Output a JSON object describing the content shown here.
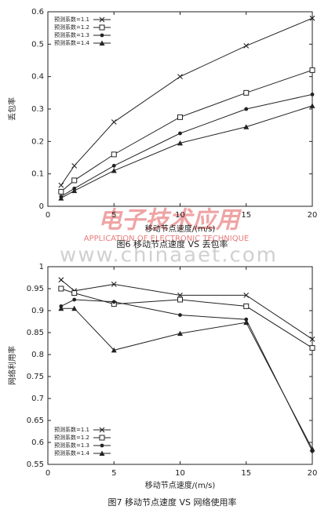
{
  "chart_data": [
    {
      "type": "line",
      "xlabel": "移动节点速度/(m/s)",
      "ylabel": "丢包率",
      "caption": "图6 移动节点速度 VS 丢包率",
      "x": [
        1,
        2,
        5,
        10,
        15,
        20
      ],
      "xlim": [
        0,
        20
      ],
      "xticks": [
        0,
        5,
        10,
        15,
        20
      ],
      "ylim": [
        0,
        0.6
      ],
      "yticks": [
        0,
        0.1,
        0.2,
        0.3,
        0.4,
        0.5,
        0.6
      ],
      "legend": "upper left",
      "series": [
        {
          "name": "预测系数=1.1",
          "color": "#222222",
          "marker": "x",
          "values": [
            0.065,
            0.125,
            0.26,
            0.4,
            0.495,
            0.58
          ]
        },
        {
          "name": "预测系数=1.2",
          "color": "#222222",
          "marker": "square",
          "values": [
            0.045,
            0.08,
            0.16,
            0.275,
            0.35,
            0.42
          ]
        },
        {
          "name": "预测系数=1.3",
          "color": "#222222",
          "marker": "circle",
          "values": [
            0.03,
            0.055,
            0.125,
            0.225,
            0.3,
            0.345
          ]
        },
        {
          "name": "预测系数=1.4",
          "color": "#222222",
          "marker": "triangle",
          "values": [
            0.025,
            0.048,
            0.11,
            0.195,
            0.245,
            0.31
          ]
        }
      ]
    },
    {
      "type": "line",
      "xlabel": "移动节点速度/(m/s)",
      "ylabel": "网络利用率",
      "caption": "图7 移动节点速度 VS 网络使用率",
      "x": [
        1,
        2,
        5,
        10,
        15,
        20
      ],
      "xlim": [
        0,
        20
      ],
      "xticks": [
        0,
        5,
        10,
        15,
        20
      ],
      "ylim": [
        0.55,
        1
      ],
      "yticks": [
        0.55,
        0.6,
        0.65,
        0.7,
        0.75,
        0.8,
        0.85,
        0.9,
        0.95,
        1
      ],
      "legend": "lower left",
      "series": [
        {
          "name": "预测系数=1.1",
          "color": "#222222",
          "marker": "x",
          "values": [
            0.97,
            0.945,
            0.96,
            0.935,
            0.935,
            0.835
          ]
        },
        {
          "name": "预测系数=1.2",
          "color": "#222222",
          "marker": "square",
          "values": [
            0.95,
            0.94,
            0.915,
            0.925,
            0.91,
            0.815
          ]
        },
        {
          "name": "预测系数=1.3",
          "color": "#222222",
          "marker": "circle",
          "values": [
            0.91,
            0.925,
            0.92,
            0.89,
            0.88,
            0.58
          ]
        },
        {
          "name": "预测系数=1.4",
          "color": "#222222",
          "marker": "triangle",
          "values": [
            0.905,
            0.905,
            0.81,
            0.848,
            0.873,
            0.585
          ]
        }
      ]
    }
  ],
  "watermark": {
    "logo": "电子技术应用",
    "name": "APPLICATION OF ELECTRONIC TECHNIQUE",
    "url": "www.chinaaet.com"
  }
}
